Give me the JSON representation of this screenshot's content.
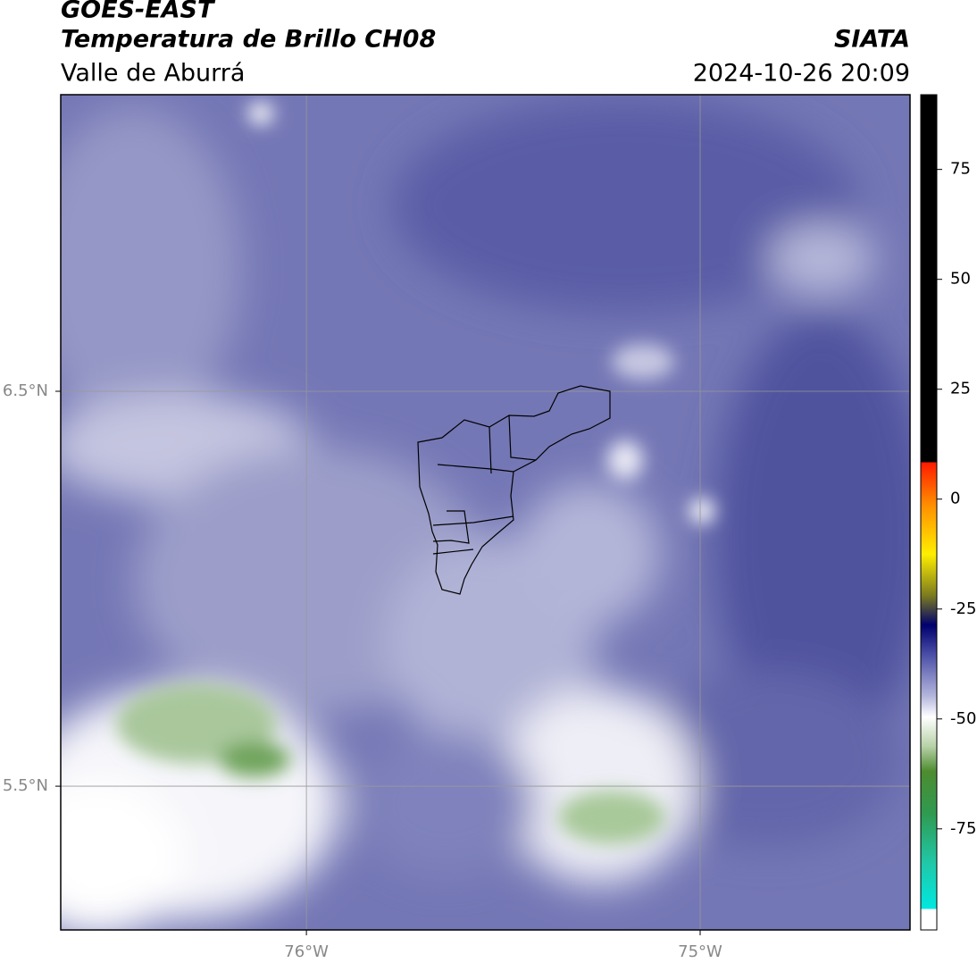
{
  "header": {
    "satellite": "GOES-EAST",
    "product": "Temperatura de Brillo CH08",
    "region": "Valle de Aburrá",
    "source": "SIATA",
    "timestamp": "2024-10-26 20:09"
  },
  "map": {
    "xlim": [
      -76.624,
      -74.467
    ],
    "ylim": [
      5.136,
      7.251
    ],
    "xticks": [
      {
        "value": -76,
        "label": "76°W"
      },
      {
        "value": -75,
        "label": "75°W"
      }
    ],
    "yticks": [
      {
        "value": 6.5,
        "label": "6.5°N"
      },
      {
        "value": 5.5,
        "label": "5.5°N"
      }
    ],
    "grid": true
  },
  "colorbar": {
    "lim": [
      -98,
      92
    ],
    "ticks": [
      75,
      50,
      25,
      0,
      -25,
      -50,
      -75
    ]
  }
}
